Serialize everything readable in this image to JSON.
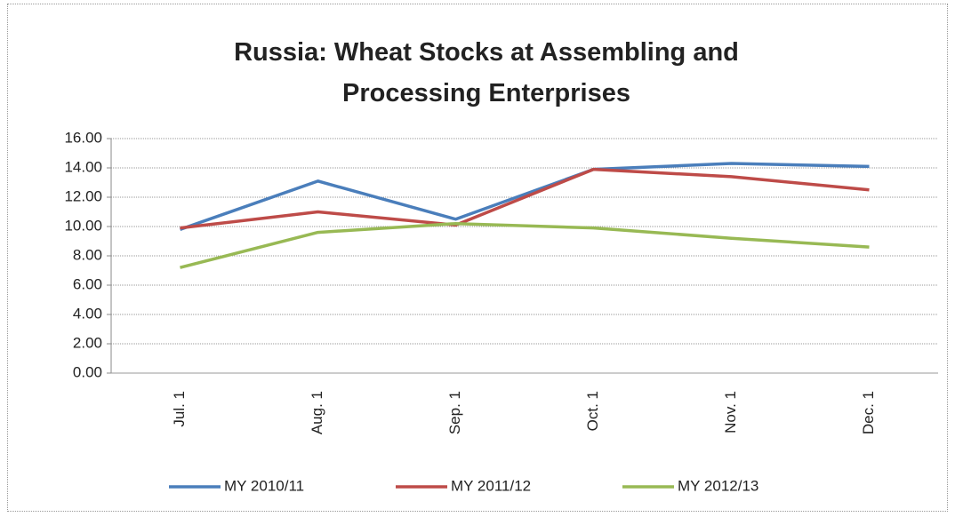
{
  "chart_data": {
    "type": "line",
    "title": "Russia: Wheat Stocks at Assembling and Processing Enterprises",
    "categories": [
      "Jul. 1",
      "Aug. 1",
      "Sep. 1",
      "Oct. 1",
      "Nov. 1",
      "Dec. 1"
    ],
    "series": [
      {
        "name": "MY 2010/11",
        "color": "#4a7ebb",
        "values": [
          9.8,
          13.1,
          10.5,
          13.9,
          14.3,
          14.1
        ]
      },
      {
        "name": "MY 2011/12",
        "color": "#be4b48",
        "values": [
          9.9,
          11.0,
          10.1,
          13.9,
          13.4,
          12.5
        ]
      },
      {
        "name": "MY 2012/13",
        "color": "#98b954",
        "values": [
          7.2,
          9.6,
          10.2,
          9.9,
          9.2,
          8.6
        ]
      }
    ],
    "ylim": [
      0,
      16
    ],
    "yticks": [
      {
        "value": 0,
        "label": "0.00"
      },
      {
        "value": 2,
        "label": "2.00"
      },
      {
        "value": 4,
        "label": "4.00"
      },
      {
        "value": 6,
        "label": "6.00"
      },
      {
        "value": 8,
        "label": "8.00"
      },
      {
        "value": 10,
        "label": "10.00"
      },
      {
        "value": 12,
        "label": "12.00"
      },
      {
        "value": 14,
        "label": "14.00"
      },
      {
        "value": 16,
        "label": "16.00"
      }
    ],
    "grid": true,
    "legend": "bottom"
  }
}
